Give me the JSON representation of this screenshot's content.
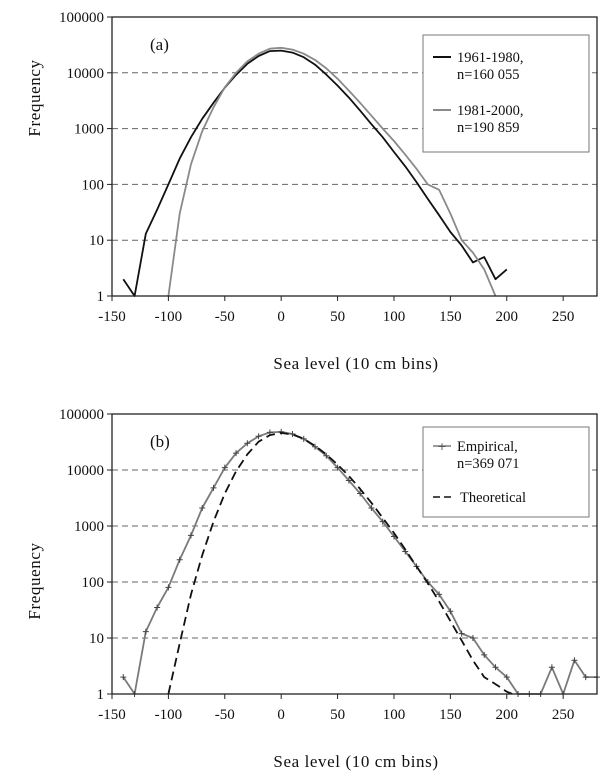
{
  "chart_data": [
    {
      "type": "line",
      "panel_label": "(a)",
      "xlabel": "Sea level (10 cm bins)",
      "ylabel": "Frequency",
      "xlim": [
        -150,
        280
      ],
      "ylim": [
        1,
        100000
      ],
      "y_scale": "log",
      "x_ticks": [
        -150,
        -100,
        -50,
        0,
        50,
        100,
        150,
        200,
        250
      ],
      "y_ticks": [
        1,
        10,
        100,
        1000,
        10000,
        100000
      ],
      "y_tick_labels": [
        "1",
        "10",
        "100",
        "1000",
        "10000",
        "100000"
      ],
      "grid": "horizontal dashed",
      "legend_position": "top-right",
      "series": [
        {
          "name": "1961-1980,",
          "name_line2": "n=160 055",
          "color": "#111111",
          "style": "solid",
          "x": [
            -140,
            -130,
            -120,
            -110,
            -100,
            -90,
            -80,
            -70,
            -60,
            -50,
            -40,
            -30,
            -20,
            -10,
            0,
            10,
            20,
            30,
            40,
            50,
            60,
            70,
            80,
            90,
            100,
            110,
            120,
            130,
            140,
            150,
            160,
            170,
            180,
            190,
            200
          ],
          "y": [
            2,
            1,
            13,
            35,
            100,
            290,
            700,
            1500,
            2900,
            5400,
            9200,
            14500,
            20000,
            24500,
            25000,
            23000,
            19000,
            14000,
            9300,
            5900,
            3600,
            2100,
            1200,
            700,
            380,
            210,
            110,
            55,
            28,
            14,
            8,
            4,
            5,
            2,
            3
          ]
        },
        {
          "name": "1981-2000,",
          "name_line2": "n=190 859",
          "color": "#8a8a8a",
          "style": "solid",
          "x": [
            -100,
            -90,
            -80,
            -70,
            -60,
            -50,
            -40,
            -30,
            -20,
            -10,
            0,
            10,
            20,
            30,
            40,
            50,
            60,
            70,
            80,
            90,
            100,
            110,
            120,
            130,
            140,
            150,
            160,
            170,
            180,
            190
          ],
          "y": [
            1,
            30,
            230,
            900,
            2400,
            5500,
            10000,
            16000,
            22000,
            27000,
            28000,
            26000,
            22000,
            17000,
            12000,
            7800,
            4800,
            2900,
            1700,
            1000,
            600,
            340,
            190,
            100,
            80,
            30,
            10,
            6,
            3,
            1
          ]
        }
      ]
    },
    {
      "type": "line",
      "panel_label": "(b)",
      "xlabel": "Sea level (10 cm bins)",
      "ylabel": "Frequency",
      "xlim": [
        -150,
        280
      ],
      "ylim": [
        1,
        100000
      ],
      "y_scale": "log",
      "x_ticks": [
        -150,
        -100,
        -50,
        0,
        50,
        100,
        150,
        200,
        250
      ],
      "y_ticks": [
        1,
        10,
        100,
        1000,
        10000,
        100000
      ],
      "y_tick_labels": [
        "1",
        "10",
        "100",
        "1000",
        "10000",
        "100000"
      ],
      "grid": "horizontal dashed",
      "legend_position": "top-right",
      "series": [
        {
          "name": "Empirical,",
          "name_line2": "n=369 071",
          "color": "#7a7a7a",
          "style": "solid with markers",
          "x": [
            -140,
            -130,
            -120,
            -110,
            -100,
            -90,
            -80,
            -70,
            -60,
            -50,
            -40,
            -30,
            -20,
            -10,
            0,
            10,
            20,
            30,
            40,
            50,
            60,
            70,
            80,
            90,
            100,
            110,
            120,
            130,
            140,
            150,
            160,
            170,
            180,
            190,
            200,
            210,
            220,
            230,
            240,
            250,
            260,
            270,
            280
          ],
          "y": [
            2,
            1,
            13,
            35,
            80,
            250,
            680,
            2100,
            4800,
            11000,
            20000,
            30000,
            40000,
            47000,
            48000,
            44000,
            36000,
            26000,
            18000,
            11000,
            6500,
            3800,
            2100,
            1200,
            650,
            350,
            190,
            100,
            60,
            30,
            12,
            10,
            5,
            3,
            2,
            1,
            1,
            1,
            3,
            1,
            4,
            2,
            2
          ]
        },
        {
          "name": "Theoretical",
          "color": "#111111",
          "style": "dashed",
          "x": [
            -100,
            -90,
            -80,
            -70,
            -60,
            -50,
            -40,
            -30,
            -20,
            -10,
            0,
            10,
            20,
            30,
            40,
            50,
            60,
            70,
            80,
            90,
            100,
            110,
            120,
            130,
            140,
            150,
            160,
            170,
            180,
            190,
            200,
            205
          ],
          "y": [
            1,
            8,
            60,
            300,
            1200,
            3800,
            9500,
            19000,
            32000,
            42000,
            46000,
            43000,
            36000,
            27000,
            19000,
            12500,
            7800,
            4600,
            2600,
            1400,
            750,
            380,
            190,
            95,
            45,
            20,
            9,
            4,
            2,
            1.5,
            1.1,
            1
          ]
        }
      ]
    }
  ]
}
